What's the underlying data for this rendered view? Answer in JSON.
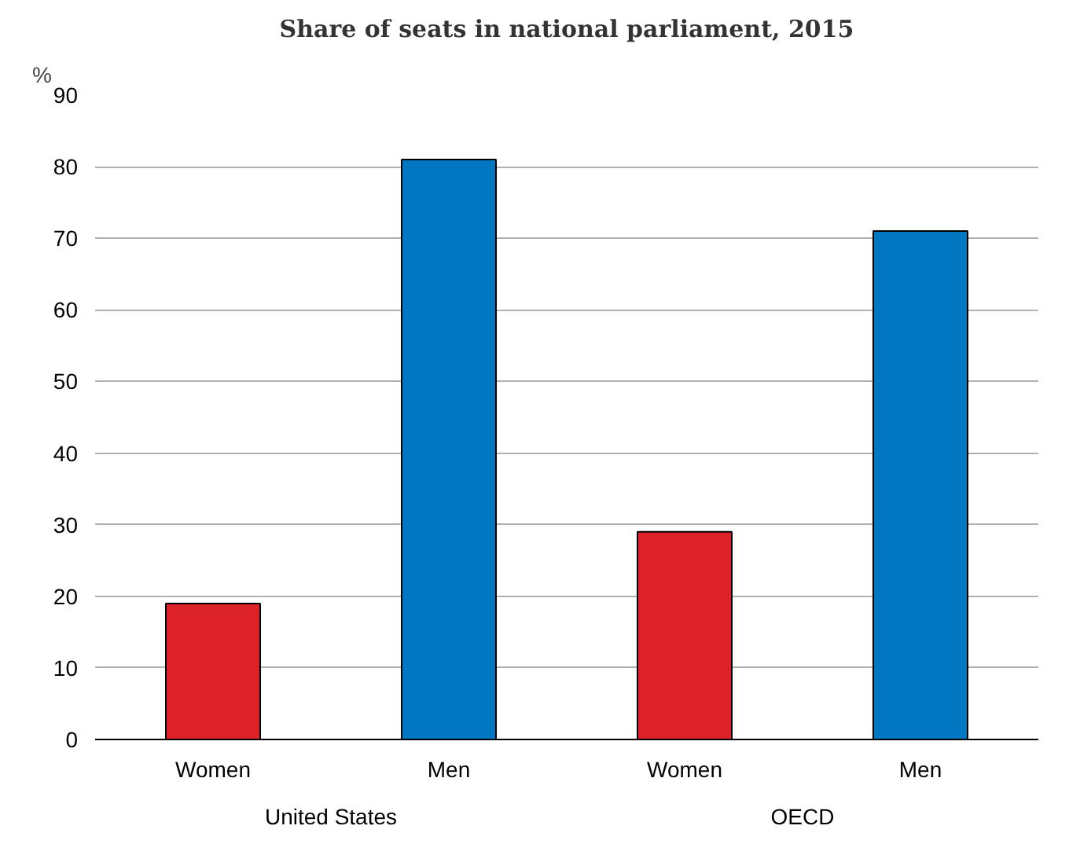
{
  "chart_data": {
    "type": "bar",
    "title": "Share of seats in national parliament, 2015",
    "ylabel": "%",
    "categories": [
      "Women",
      "Men",
      "Women",
      "Men"
    ],
    "annotations": [
      "United States",
      "OECD"
    ],
    "values": [
      19,
      81,
      29,
      71
    ],
    "colors": [
      "#dc2228",
      "#0077c0",
      "#dc2228",
      "#0077c0"
    ],
    "ylim": [
      0,
      90
    ],
    "yticks": [
      0,
      10,
      20,
      30,
      40,
      50,
      60,
      70,
      80,
      90
    ],
    "grid": "y"
  }
}
